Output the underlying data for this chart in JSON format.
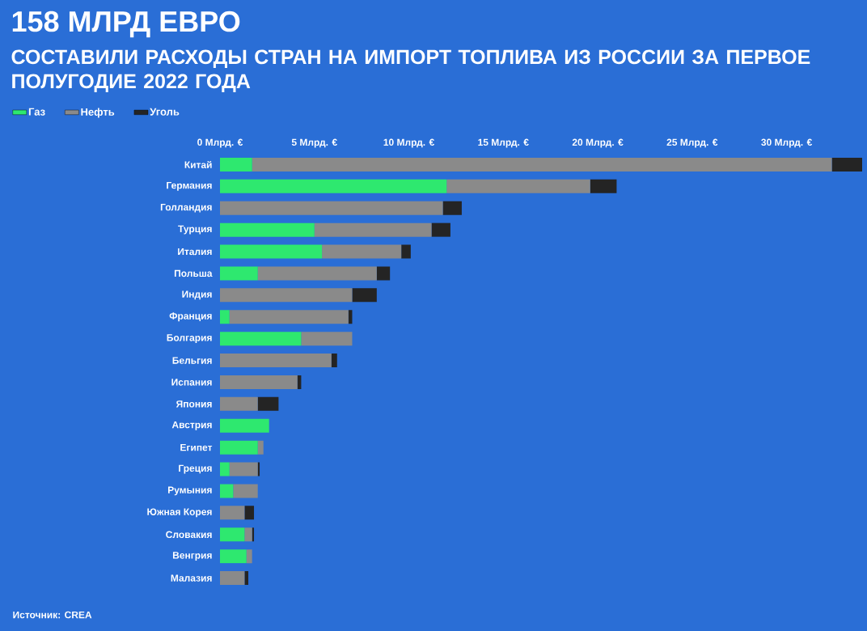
{
  "chart_data": {
    "type": "bar",
    "orientation": "horizontal",
    "stacked": true,
    "title": "158 МЛРД ЕВРО",
    "subtitle": "СОСТАВИЛИ РАСХОДЫ СТРАН НА ИМПОРТ ТОПЛИВА ИЗ РОССИИ ЗА ПЕРВОЕ ПОЛУГОДИЕ 2022 ГОДА",
    "annotations": [
      "Источник: CREA"
    ],
    "categories": [
      "Китай",
      "Германия",
      "Голландия",
      "Турция",
      "Италия",
      "Польша",
      "Индия",
      "Франция",
      "Болгария",
      "Бельгия",
      "Испания",
      "Япония",
      "Австрия",
      "Египет",
      "Греция",
      "Румыния",
      "Южная Корея",
      "Словакия",
      "Венгрия",
      "Малазия"
    ],
    "series": [
      {
        "name": "Газ",
        "color": "#2ee86f",
        "values": [
          1.7,
          12.0,
          0,
          5.0,
          5.4,
          2.0,
          0,
          0.5,
          4.3,
          0,
          0,
          0,
          2.6,
          2.0,
          0.5,
          0.7,
          0,
          1.3,
          1.4,
          0
        ]
      },
      {
        "name": "Нефть",
        "color": "#8a8a8a",
        "values": [
          30.7,
          7.6,
          11.8,
          6.2,
          4.2,
          6.3,
          7.0,
          6.3,
          2.7,
          5.9,
          4.1,
          2.0,
          0,
          0.3,
          1.5,
          1.3,
          1.3,
          0.4,
          0.3,
          1.3
        ]
      },
      {
        "name": "Уголь",
        "color": "#242424",
        "values": [
          1.6,
          1.4,
          1.0,
          1.0,
          0.5,
          0.7,
          1.3,
          0.2,
          0,
          0.3,
          0.2,
          1.1,
          0,
          0,
          0.1,
          0,
          0.5,
          0.1,
          0,
          0.2
        ]
      }
    ],
    "xlim": [
      0,
      34
    ],
    "xticks": [
      {
        "value": 0,
        "label": "0 Млрд. €"
      },
      {
        "value": 5,
        "label": "5 Млрд. €"
      },
      {
        "value": 10,
        "label": "10 Млрд. €"
      },
      {
        "value": 15,
        "label": "15 Млрд. €"
      },
      {
        "value": 20,
        "label": "20 Млрд. €"
      },
      {
        "value": 25,
        "label": "25 Млрд. €"
      },
      {
        "value": 30,
        "label": "30 Млрд. €"
      }
    ],
    "legend": "top left"
  }
}
